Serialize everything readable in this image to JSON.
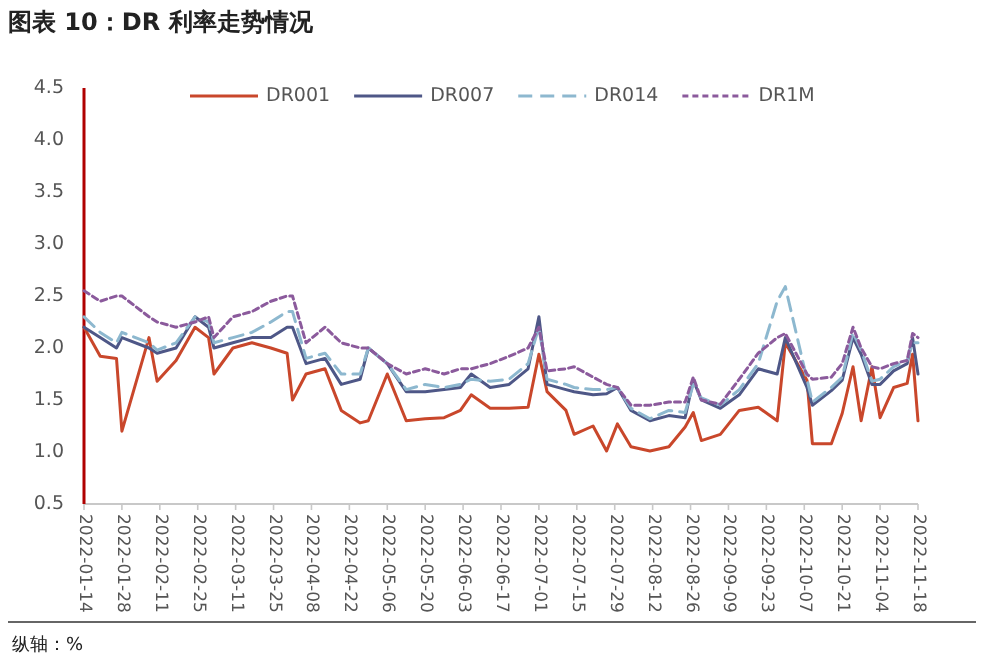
{
  "chart_data": {
    "type": "line",
    "title": "图表 10：DR 利率走势情况",
    "annotations": [
      "纵轴：%"
    ],
    "x": [
      "2022-01-14",
      "2022-01-20",
      "2022-01-26",
      "2022-01-28",
      "2022-02-07",
      "2022-02-10",
      "2022-02-17",
      "2022-02-24",
      "2022-03-01",
      "2022-03-03",
      "2022-03-10",
      "2022-03-17",
      "2022-03-24",
      "2022-03-30",
      "2022-04-01",
      "2022-04-06",
      "2022-04-13",
      "2022-04-19",
      "2022-04-26",
      "2022-04-29",
      "2022-05-06",
      "2022-05-13",
      "2022-05-20",
      "2022-05-27",
      "2022-06-02",
      "2022-06-06",
      "2022-06-13",
      "2022-06-20",
      "2022-06-27",
      "2022-07-01",
      "2022-07-04",
      "2022-07-11",
      "2022-07-14",
      "2022-07-21",
      "2022-07-26",
      "2022-07-30",
      "2022-08-04",
      "2022-08-11",
      "2022-08-18",
      "2022-08-24",
      "2022-08-27",
      "2022-08-30",
      "2022-09-06",
      "2022-09-13",
      "2022-09-20",
      "2022-09-27",
      "2022-09-30",
      "2022-10-08",
      "2022-10-10",
      "2022-10-17",
      "2022-10-21",
      "2022-10-25",
      "2022-10-28",
      "2022-11-01",
      "2022-11-04",
      "2022-11-09",
      "2022-11-14",
      "2022-11-16",
      "2022-11-18"
    ],
    "series": [
      {
        "name": "DR001",
        "color": "#c9472b",
        "line_style": "solid",
        "values": [
          2.2,
          1.92,
          1.9,
          1.2,
          2.1,
          1.68,
          1.88,
          2.2,
          2.1,
          1.75,
          2.0,
          2.05,
          2.0,
          1.95,
          1.5,
          1.75,
          1.8,
          1.4,
          1.28,
          1.3,
          1.75,
          1.3,
          1.32,
          1.33,
          1.4,
          1.55,
          1.42,
          1.42,
          1.43,
          1.94,
          1.58,
          1.4,
          1.17,
          1.25,
          1.01,
          1.27,
          1.05,
          1.01,
          1.05,
          1.24,
          1.38,
          1.11,
          1.17,
          1.4,
          1.43,
          1.3,
          2.05,
          1.69,
          1.08,
          1.08,
          1.37,
          1.82,
          1.3,
          1.82,
          1.33,
          1.62,
          1.66,
          1.94,
          1.3
        ]
      },
      {
        "name": "DR007",
        "color": "#4e5787",
        "line_style": "solid",
        "values": [
          2.2,
          2.1,
          2.0,
          2.1,
          2.0,
          1.95,
          2.0,
          2.3,
          2.2,
          2.0,
          2.05,
          2.1,
          2.1,
          2.2,
          2.2,
          1.85,
          1.9,
          1.65,
          1.7,
          2.0,
          1.85,
          1.58,
          1.58,
          1.6,
          1.62,
          1.75,
          1.62,
          1.65,
          1.8,
          2.3,
          1.65,
          1.6,
          1.58,
          1.55,
          1.56,
          1.62,
          1.4,
          1.3,
          1.35,
          1.33,
          1.69,
          1.5,
          1.42,
          1.55,
          1.8,
          1.75,
          2.1,
          1.62,
          1.45,
          1.59,
          1.69,
          2.1,
          1.94,
          1.65,
          1.65,
          1.78,
          1.85,
          2.1,
          1.75
        ]
      },
      {
        "name": "DR014",
        "color": "#8db8cf",
        "line_style": "dashed",
        "values": [
          2.3,
          2.15,
          2.05,
          2.15,
          2.05,
          1.98,
          2.05,
          2.3,
          2.25,
          2.05,
          2.1,
          2.15,
          2.25,
          2.35,
          2.35,
          1.9,
          1.95,
          1.75,
          1.75,
          2.0,
          1.85,
          1.6,
          1.65,
          1.62,
          1.65,
          1.7,
          1.68,
          1.7,
          1.85,
          2.2,
          1.7,
          1.65,
          1.62,
          1.6,
          1.6,
          1.62,
          1.42,
          1.32,
          1.4,
          1.38,
          1.65,
          1.52,
          1.45,
          1.6,
          1.85,
          2.45,
          2.59,
          1.7,
          1.48,
          1.62,
          1.72,
          2.15,
          1.98,
          1.68,
          1.7,
          1.82,
          1.88,
          2.05,
          2.05
        ]
      },
      {
        "name": "DR1M",
        "color": "#8b5a9c",
        "line_style": "dotted",
        "values": [
          2.55,
          2.45,
          2.5,
          2.5,
          2.3,
          2.25,
          2.2,
          2.25,
          2.3,
          2.1,
          2.3,
          2.35,
          2.45,
          2.5,
          2.5,
          2.05,
          2.2,
          2.05,
          2.0,
          2.0,
          1.85,
          1.75,
          1.8,
          1.75,
          1.8,
          1.8,
          1.85,
          1.92,
          2.0,
          2.2,
          1.78,
          1.8,
          1.82,
          1.72,
          1.65,
          1.62,
          1.45,
          1.45,
          1.48,
          1.48,
          1.72,
          1.5,
          1.46,
          1.7,
          1.95,
          2.1,
          2.14,
          1.75,
          1.7,
          1.72,
          1.85,
          2.2,
          2.0,
          1.82,
          1.8,
          1.85,
          1.88,
          2.14,
          2.1
        ]
      }
    ],
    "xlim": [
      "2022-01-14",
      "2022-11-18"
    ],
    "xticks": [
      "2022-01-14",
      "2022-01-28",
      "2022-02-11",
      "2022-02-25",
      "2022-03-11",
      "2022-03-25",
      "2022-04-08",
      "2022-04-22",
      "2022-05-06",
      "2022-05-20",
      "2022-06-03",
      "2022-06-17",
      "2022-07-01",
      "2022-07-15",
      "2022-07-29",
      "2022-08-12",
      "2022-08-26",
      "2022-09-09",
      "2022-09-23",
      "2022-10-07",
      "2022-10-21",
      "2022-11-04",
      "2022-11-18"
    ],
    "ylim": [
      0.5,
      4.5
    ],
    "yticks": [
      {
        "value": 0.5,
        "label": "0.5"
      },
      {
        "value": 1,
        "label": "1.0"
      },
      {
        "value": 1.5,
        "label": "1.5"
      },
      {
        "value": 2,
        "label": "2.0"
      },
      {
        "value": 2.5,
        "label": "2.5"
      },
      {
        "value": 3,
        "label": "3.0"
      },
      {
        "value": 3.5,
        "label": "3.5"
      },
      {
        "value": 4,
        "label": "4.0"
      },
      {
        "value": 4.5,
        "label": "4.5"
      }
    ],
    "legend": "top"
  }
}
